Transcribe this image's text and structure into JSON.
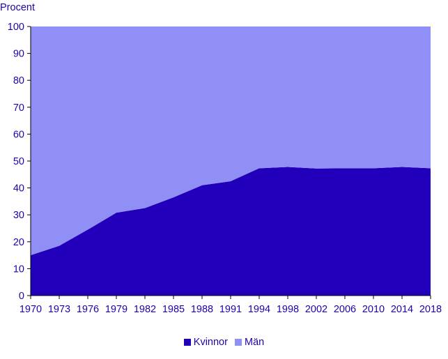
{
  "chart_data": {
    "type": "area",
    "stacked": true,
    "ylabel": "Procent",
    "ylim": [
      0,
      100
    ],
    "yticks": [
      0,
      10,
      20,
      30,
      40,
      50,
      60,
      70,
      80,
      90,
      100
    ],
    "categories": [
      "1970",
      "1973",
      "1976",
      "1979",
      "1982",
      "1985",
      "1988",
      "1991",
      "1994",
      "1998",
      "2002",
      "2006",
      "2010",
      "2014",
      "2018"
    ],
    "series": [
      {
        "name": "Kvinnor",
        "color": "#2200bb",
        "values": [
          15,
          18.5,
          24.5,
          30.8,
          32.5,
          36.5,
          41,
          42.5,
          47.3,
          47.8,
          47.2,
          47.3,
          47.3,
          47.8,
          47.3
        ]
      },
      {
        "name": "Män",
        "color": "#8f8ff5",
        "values": [
          85,
          81.5,
          75.5,
          69.2,
          67.5,
          63.5,
          59,
          57.5,
          52.7,
          52.2,
          52.8,
          52.7,
          52.7,
          52.2,
          52.7
        ]
      }
    ],
    "grid": false,
    "legend_position": "bottom"
  },
  "style": {
    "text_color": "#2200aa"
  }
}
